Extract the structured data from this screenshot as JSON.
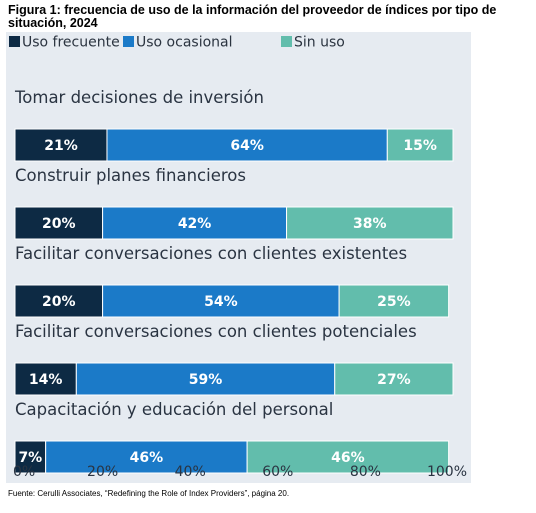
{
  "title": "Figura 1: frecuencia de uso de la información del proveedor de índices por tipo de situación, 2024",
  "source": "Fuente: Cerulli Associates, “Redefining the Role of Index Providers”, página 20.",
  "chart_data": {
    "type": "bar",
    "orientation": "horizontal",
    "stacked": true,
    "categories": [
      "Tomar decisiones de inversión",
      "Construir planes financieros",
      "Facilitar conversaciones con clientes existentes",
      "Facilitar conversaciones con clientes potenciales",
      "Capacitación y educación del personal"
    ],
    "series": [
      {
        "name": "Uso frecuente",
        "values": [
          21,
          20,
          20,
          14,
          7
        ],
        "labels": [
          "21%",
          "20%",
          "20%",
          "14%",
          "7%"
        ],
        "color": "#0d2a44"
      },
      {
        "name": "Uso ocasional",
        "values": [
          64,
          42,
          54,
          59,
          46
        ],
        "labels": [
          "64%",
          "42%",
          "54%",
          "59%",
          "46%"
        ],
        "color": "#1b7ac8"
      },
      {
        "name": "Sin uso",
        "values": [
          15,
          38,
          25,
          27,
          46
        ],
        "labels": [
          "15%",
          "38%",
          "25%",
          "27%",
          "46%"
        ],
        "color": "#62bdac"
      }
    ],
    "xlim": [
      0,
      100
    ],
    "xticks": [
      "0%",
      "20%",
      "40%",
      "60%",
      "80%",
      "100%"
    ],
    "legend_position": "top-left",
    "grid": false
  }
}
